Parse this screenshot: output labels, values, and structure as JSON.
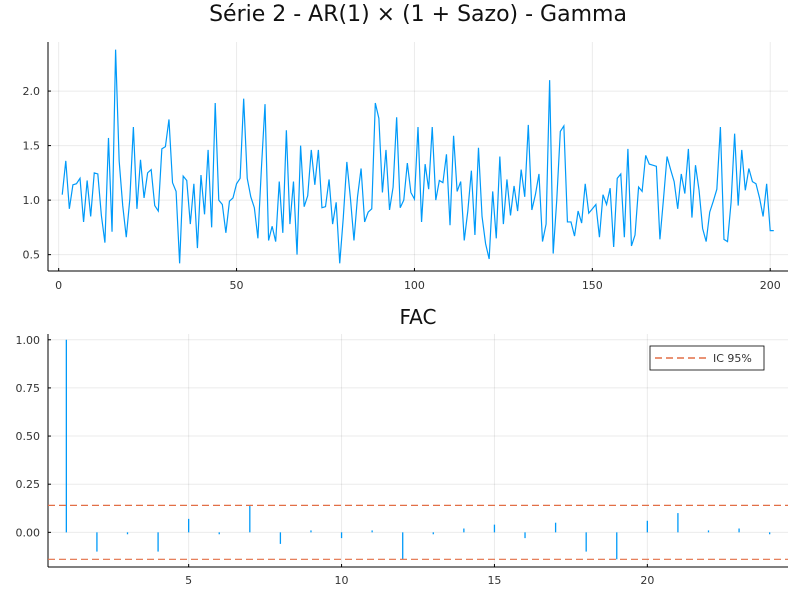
{
  "chart_data": [
    {
      "type": "line",
      "title": "Série 2 - AR(1) × (1 + Sazo) - Gamma",
      "xlabel": "",
      "ylabel": "",
      "xlim": [
        -3,
        205
      ],
      "ylim": [
        0.35,
        2.45
      ],
      "xticks": [
        0,
        50,
        100,
        150,
        200
      ],
      "yticks": [
        0.5,
        1.0,
        1.5,
        2.0
      ],
      "xtick_labels": [
        "0",
        "50",
        "100",
        "150",
        "200"
      ],
      "ytick_labels": [
        "0.5",
        "1.0",
        "1.5",
        "2.0"
      ],
      "grid": true,
      "color": "#009AF9",
      "x_start": 1,
      "values": [
        1.05,
        1.36,
        0.92,
        1.14,
        1.15,
        1.2,
        0.8,
        1.18,
        0.85,
        1.25,
        1.24,
        0.86,
        0.61,
        1.57,
        0.71,
        2.38,
        1.36,
        0.95,
        0.66,
        1.01,
        1.67,
        0.92,
        1.37,
        1.02,
        1.25,
        1.28,
        0.95,
        0.9,
        1.47,
        1.49,
        1.74,
        1.16,
        1.08,
        0.42,
        1.22,
        1.18,
        0.78,
        1.15,
        0.56,
        1.23,
        0.87,
        1.46,
        0.75,
        1.89,
        1.0,
        0.96,
        0.7,
        0.99,
        1.02,
        1.15,
        1.2,
        1.93,
        1.2,
        1.03,
        0.93,
        0.65,
        1.3,
        1.88,
        0.63,
        0.76,
        0.62,
        1.17,
        0.7,
        1.64,
        0.78,
        1.17,
        0.5,
        1.5,
        0.94,
        1.04,
        1.46,
        1.14,
        1.46,
        0.93,
        0.94,
        1.19,
        0.78,
        0.98,
        0.42,
        0.84,
        1.35,
        1.02,
        0.63,
        1.03,
        1.29,
        0.8,
        0.89,
        0.92,
        1.89,
        1.75,
        1.07,
        1.46,
        0.91,
        1.12,
        1.76,
        0.93,
        1.0,
        1.34,
        1.07,
        1.01,
        1.67,
        0.8,
        1.33,
        1.1,
        1.67,
        1.0,
        1.18,
        1.16,
        1.42,
        0.77,
        1.59,
        1.08,
        1.17,
        0.63,
        0.9,
        1.27,
        0.68,
        1.48,
        0.85,
        0.6,
        0.46,
        1.08,
        0.65,
        1.4,
        0.78,
        1.19,
        0.86,
        1.13,
        0.9,
        1.28,
        1.03,
        1.69,
        0.91,
        1.05,
        1.24,
        0.62,
        0.78,
        2.1,
        0.51,
        1.0,
        1.63,
        1.68,
        0.8,
        0.8,
        0.67,
        0.9,
        0.79,
        1.15,
        0.88,
        0.92,
        0.96,
        0.66,
        1.05,
        0.96,
        1.11,
        0.57,
        1.2,
        1.24,
        0.66,
        1.47,
        0.58,
        0.68,
        1.12,
        1.08,
        1.41,
        1.33,
        1.32,
        1.31,
        0.64,
        1.01,
        1.4,
        1.28,
        1.17,
        0.92,
        1.24,
        1.06,
        1.47,
        0.84,
        1.32,
        1.09,
        0.74,
        0.62,
        0.89,
        0.99,
        1.1,
        1.67,
        0.64,
        0.62,
        0.98,
        1.61,
        0.95,
        1.46,
        1.09,
        1.29,
        1.17,
        1.15,
        1.02,
        0.85,
        1.15,
        0.72,
        0.72
      ]
    },
    {
      "type": "bar",
      "title": "FAC",
      "xlabel": "",
      "ylabel": "",
      "xlim": [
        0.4,
        24.6
      ],
      "ylim": [
        -0.18,
        1.03
      ],
      "xticks": [
        5,
        10,
        15,
        20
      ],
      "yticks": [
        0.0,
        0.25,
        0.5,
        0.75,
        1.0
      ],
      "xtick_labels": [
        "5",
        "10",
        "15",
        "20"
      ],
      "ytick_labels": [
        "0.00",
        "0.25",
        "0.50",
        "0.75",
        "1.00"
      ],
      "grid": true,
      "color": "#009AF9",
      "lags": [
        1,
        2,
        3,
        4,
        5,
        6,
        7,
        8,
        9,
        10,
        11,
        12,
        13,
        14,
        15,
        16,
        17,
        18,
        19,
        20,
        21,
        22,
        23,
        24
      ],
      "values": [
        1.0,
        -0.1,
        -0.01,
        -0.1,
        0.07,
        -0.01,
        0.14,
        -0.06,
        0.01,
        -0.03,
        0.01,
        -0.14,
        -0.01,
        0.02,
        0.04,
        -0.03,
        0.05,
        -0.1,
        -0.14,
        0.06,
        0.1,
        0.01,
        0.02,
        -0.01
      ],
      "ci": {
        "upper": 0.14,
        "lower": -0.14,
        "color": "#E26F46"
      },
      "legend": {
        "position": "top-right",
        "entries": [
          "IC 95%"
        ]
      }
    }
  ]
}
